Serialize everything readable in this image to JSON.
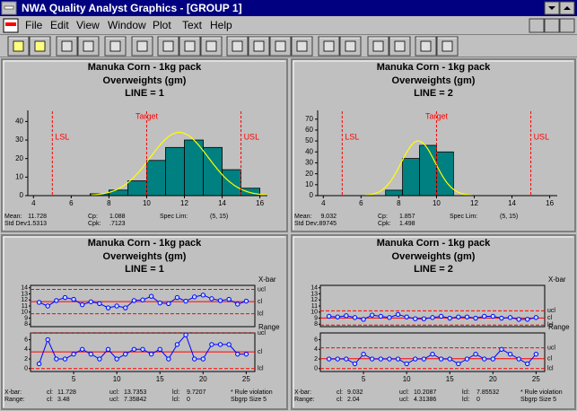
{
  "window": {
    "title": "NWA Quality Analyst Graphics - [GROUP 1]"
  },
  "menu": [
    "File",
    "Edit",
    "View",
    "Window",
    "Plot",
    "Text",
    "Help"
  ],
  "chart_data": [
    {
      "type": "histogram",
      "title": "Manuka Corn - 1kg pack",
      "subtitle": "Overweights (gm)",
      "group_label": "LINE = 1",
      "bins": [
        7,
        8,
        9,
        10,
        11,
        12,
        13,
        14,
        15,
        16
      ],
      "values": [
        1,
        3,
        8,
        19,
        26,
        30,
        26,
        14,
        4
      ],
      "color": "#008080",
      "curve_color": "#ffff00",
      "xlim": [
        3.7,
        16.4
      ],
      "xticks": [
        4,
        6,
        8,
        10,
        12,
        14,
        16
      ],
      "ylim": [
        0,
        46
      ],
      "yticks": [
        0,
        10,
        20,
        30,
        40
      ],
      "reference_lines": [
        {
          "label": "LSL",
          "value": 5
        },
        {
          "label": "Target",
          "value": 10
        },
        {
          "label": "USL",
          "value": 15
        }
      ],
      "stats": {
        "mean": {
          "label": "Mean:",
          "value": 11.728
        },
        "cp": {
          "label": "Cp:",
          "value": 1.088
        },
        "spec_lim": {
          "label": "Spec Lim:",
          "value": "(5,  15)"
        },
        "std_dev": {
          "label": "Std Dev:",
          "value": 1.5313
        },
        "cpk": {
          "label": "Cpk:",
          "value": 0.7123,
          "value_label": ".7123"
        }
      }
    },
    {
      "type": "histogram",
      "title": "Manuka Corn - 1kg pack",
      "subtitle": "Overweights (gm)",
      "group_label": "LINE = 2",
      "bins": [
        7.3,
        8.2,
        9.1,
        10.0,
        10.9
      ],
      "values": [
        5,
        34,
        46,
        40
      ],
      "color": "#008080",
      "curve_color": "#ffff00",
      "xlim": [
        3.7,
        16.4
      ],
      "xticks": [
        4,
        6,
        8,
        10,
        12,
        14,
        16
      ],
      "ylim": [
        0,
        78
      ],
      "yticks": [
        0,
        10,
        20,
        30,
        40,
        50,
        60,
        70
      ],
      "reference_lines": [
        {
          "label": "LSL",
          "value": 5
        },
        {
          "label": "Target",
          "value": 10
        },
        {
          "label": "USL",
          "value": 15
        }
      ],
      "stats": {
        "mean": {
          "label": "Mean:",
          "value": 9.032
        },
        "cp": {
          "label": "Cp:",
          "value": 1.857
        },
        "spec_lim": {
          "label": "Spec Lim:",
          "value": "(5,  15)"
        },
        "std_dev": {
          "label": "Std Dev:",
          "value": 0.89745,
          "value_label": ".89745"
        },
        "cpk": {
          "label": "Cpk:",
          "value": 1.498
        }
      }
    },
    {
      "type": "control",
      "title": "Manuka Corn - 1kg pack",
      "subtitle": "Overweights (gm)",
      "group_label": "LINE = 1",
      "x": [
        1,
        2,
        3,
        4,
        5,
        6,
        7,
        8,
        9,
        10,
        11,
        12,
        13,
        14,
        15,
        16,
        17,
        18,
        19,
        20,
        21,
        22,
        23,
        24,
        25
      ],
      "xlim": [
        0,
        26
      ],
      "xticks": [
        5,
        10,
        15,
        20,
        25
      ],
      "color": "#0000ff",
      "limit_color": "#ff0000",
      "xbar": {
        "name": "X-bar",
        "values": [
          11.6,
          11.0,
          11.9,
          12.4,
          12.1,
          11.2,
          11.7,
          11.4,
          10.7,
          11.0,
          10.7,
          11.9,
          12.0,
          12.6,
          11.5,
          11.4,
          12.4,
          11.8,
          12.5,
          12.8,
          12.2,
          11.9,
          12.1,
          11.3,
          11.8
        ],
        "ylim": [
          7.6,
          14.4
        ],
        "yticks": [
          8,
          9,
          10,
          11,
          12,
          13,
          14
        ],
        "limits": {
          "ucl": {
            "label": "ucl",
            "value": 13.7353
          },
          "cl": {
            "label": "cl",
            "value": 11.728
          },
          "lcl": {
            "label": "lcl",
            "value": 9.7207
          }
        }
      },
      "range": {
        "name": "Range",
        "values": [
          1,
          6,
          2,
          2,
          3,
          4,
          3,
          2,
          4,
          2,
          3,
          4,
          4,
          3,
          4,
          2,
          5,
          7,
          2,
          2,
          5,
          5,
          5,
          3,
          3
        ],
        "ylim": [
          -0.6,
          7.4
        ],
        "yticks": [
          0,
          2,
          4,
          6
        ],
        "limits": {
          "ucl": {
            "label": "ucl",
            "value": 7.35842
          },
          "cl": {
            "label": "cl",
            "value": 3.48
          },
          "lcl": {
            "label": "lcl",
            "value": 0
          }
        }
      },
      "footer": {
        "xbar_label": "X-bar:",
        "range_label": "Range:",
        "cl": "cl:",
        "ucl": "ucl:",
        "lcl": "lcl:",
        "note": "* Rule violation",
        "subgroup": "Sbgrp Size 5"
      }
    },
    {
      "type": "control",
      "title": "Manuka Corn - 1kg pack",
      "subtitle": "Overweights (gm)",
      "group_label": "LINE = 2",
      "x": [
        1,
        2,
        3,
        4,
        5,
        6,
        7,
        8,
        9,
        10,
        11,
        12,
        13,
        14,
        15,
        16,
        17,
        18,
        19,
        20,
        21,
        22,
        23,
        24,
        25
      ],
      "xlim": [
        0,
        26
      ],
      "xticks": [
        5,
        10,
        15,
        20,
        25
      ],
      "color": "#0000ff",
      "limit_color": "#ff0000",
      "xbar": {
        "name": "X-bar",
        "values": [
          9.3,
          9.2,
          9.4,
          9.1,
          8.8,
          9.5,
          9.3,
          9.1,
          9.6,
          9.2,
          8.9,
          8.9,
          9.1,
          9.3,
          9.0,
          9.2,
          9.2,
          9.0,
          9.3,
          9.3,
          9.0,
          9.1,
          8.8,
          8.8,
          9.1
        ],
        "ylim": [
          7.6,
          14.4
        ],
        "yticks": [
          8,
          9,
          10,
          11,
          12,
          13,
          14
        ],
        "limits": {
          "ucl": {
            "label": "ucl",
            "value": 10.2087
          },
          "cl": {
            "label": "cl",
            "value": 9.032
          },
          "lcl": {
            "label": "lcl",
            "value": 7.85532
          }
        }
      },
      "range": {
        "name": "Range",
        "values": [
          2,
          2,
          2,
          1,
          3,
          2,
          2,
          2,
          2,
          1,
          2,
          2,
          3,
          2,
          2,
          1,
          2,
          3,
          2,
          2,
          4,
          3,
          2,
          1,
          3
        ],
        "ylim": [
          -0.6,
          7.4
        ],
        "yticks": [
          0,
          2,
          4,
          6
        ],
        "limits": {
          "ucl": {
            "label": "ucl",
            "value": 4.31386
          },
          "cl": {
            "label": "cl",
            "value": 2.04
          },
          "lcl": {
            "label": "lcl",
            "value": 0
          }
        }
      },
      "footer": {
        "xbar_label": "X-bar:",
        "range_label": "Range:",
        "cl": "cl:",
        "ucl": "ucl:",
        "lcl": "lcl:",
        "note": "* Rule violation",
        "subgroup": "Sbgrp Size 5"
      }
    }
  ]
}
